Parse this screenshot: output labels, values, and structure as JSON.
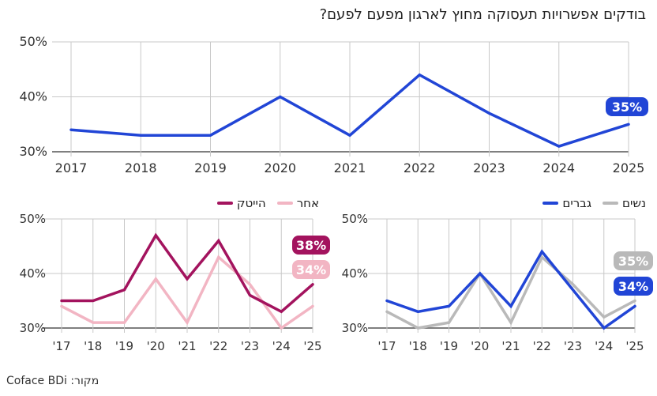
{
  "title": "בודקים אפשרויות תעסוקה מחוץ לארגון מפעם לפעם?",
  "source": "מקור: Coface BDi",
  "colors": {
    "dark_blue": "#2145d6",
    "gray": "#b9b9b9",
    "maroon": "#a3135e",
    "pink": "#f2b5c3",
    "grid": "#c8c8c8"
  },
  "chart_data": [
    {
      "type": "line",
      "categories": [
        "2017",
        "2018",
        "2019",
        "2020",
        "2021",
        "2022",
        "2023",
        "2024",
        "2025"
      ],
      "series": [
        {
          "values": [
            34,
            33,
            33,
            40,
            33,
            44,
            37,
            31,
            35
          ],
          "color": "#2145d6"
        }
      ],
      "ylim": [
        30,
        50
      ],
      "y_ticks": [
        "30%",
        "40%",
        "50%"
      ],
      "end_labels": [
        "35%"
      ],
      "grid": true
    },
    {
      "type": "line",
      "categories": [
        "'17",
        "'18",
        "'19",
        "'20",
        "'21",
        "'22",
        "'23",
        "'24",
        "'25"
      ],
      "series": [
        {
          "name": "גברים",
          "values": [
            35,
            33,
            34,
            40,
            34,
            44,
            37,
            30,
            34
          ],
          "color": "#2145d6"
        },
        {
          "name": "נשים",
          "values": [
            33,
            30,
            31,
            40,
            31,
            43,
            38,
            32,
            35
          ],
          "color": "#b9b9b9"
        }
      ],
      "ylim": [
        30,
        50
      ],
      "y_ticks": [
        "30%",
        "40%",
        "50%"
      ],
      "end_labels": [
        "34%",
        "35%"
      ],
      "legend": "top-right",
      "grid": true
    },
    {
      "type": "line",
      "categories": [
        "'17",
        "'18",
        "'19",
        "'20",
        "'21",
        "'22",
        "'23",
        "'24",
        "'25"
      ],
      "series": [
        {
          "name": "הייטק",
          "values": [
            35,
            35,
            37,
            47,
            39,
            46,
            36,
            33,
            38
          ],
          "color": "#a3135e"
        },
        {
          "name": "אחר",
          "values": [
            34,
            31,
            31,
            39,
            31,
            43,
            38,
            30,
            34
          ],
          "color": "#f2b5c3"
        }
      ],
      "ylim": [
        30,
        50
      ],
      "y_ticks": [
        "30%",
        "40%",
        "50%"
      ],
      "end_labels": [
        "38%",
        "34%"
      ],
      "legend": "top-right",
      "grid": true
    }
  ]
}
